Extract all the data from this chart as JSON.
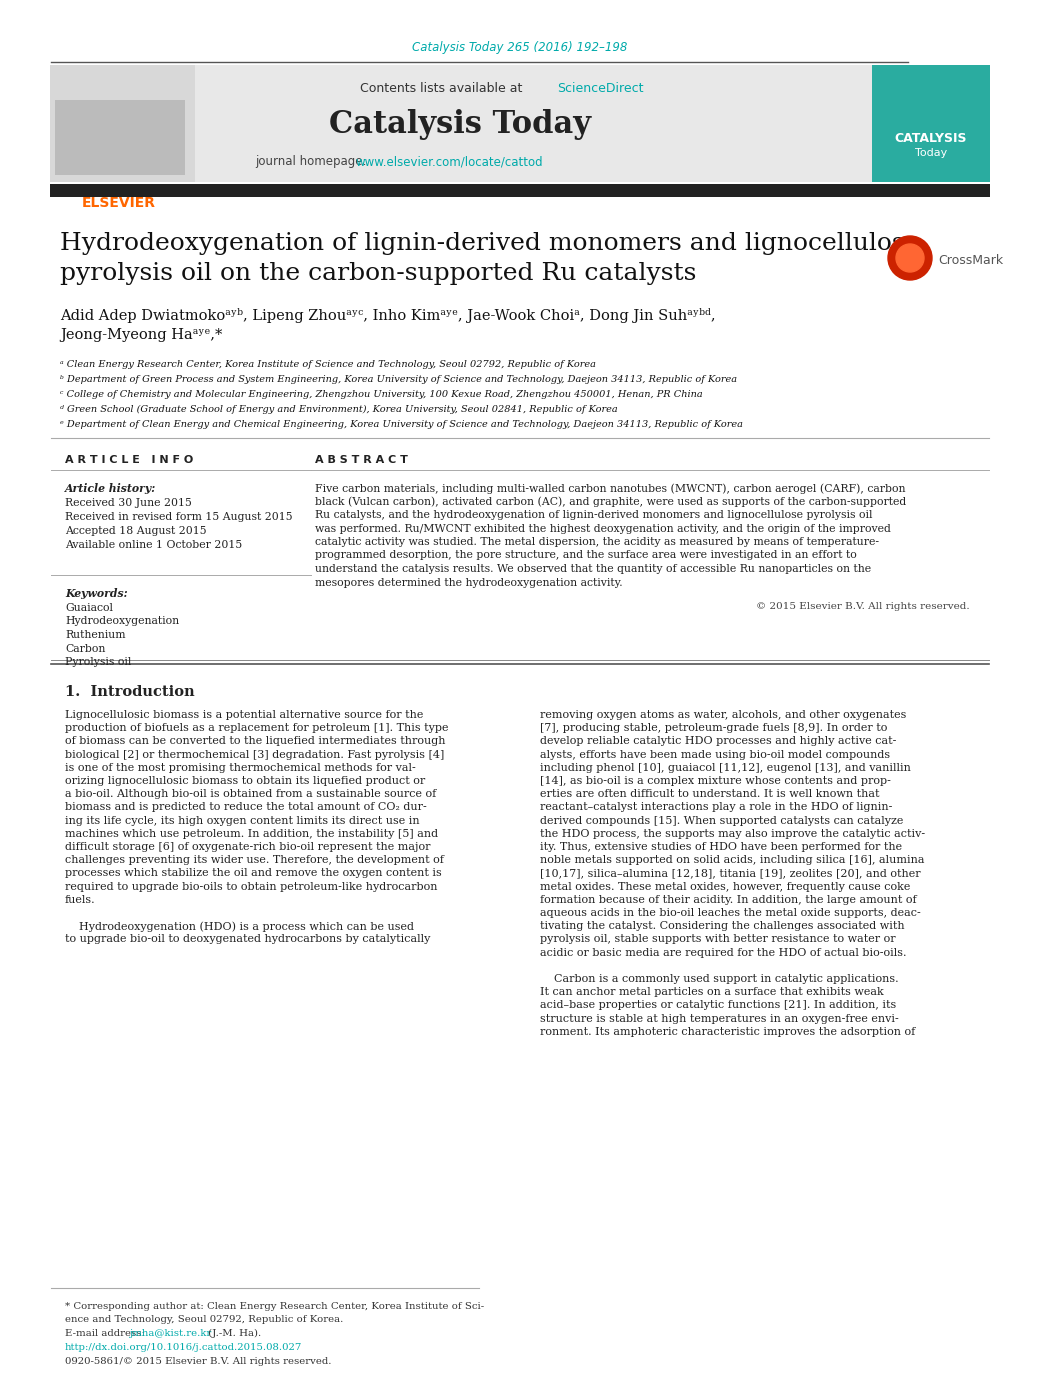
{
  "bg_color": "#ffffff",
  "top_citation": "Catalysis Today 265 (2016) 192–198",
  "top_citation_color": "#00AAAA",
  "header_bg": "#e8e8e8",
  "header_text": "Contents lists available at",
  "sciencedirect_text": "ScienceDirect",
  "sciencedirect_color": "#00AAAA",
  "journal_name": "Catalysis Today",
  "journal_homepage_label": "journal homepage:",
  "journal_url": "www.elsevier.com/locate/cattod",
  "journal_url_color": "#00AAAA",
  "divider_color": "#333333",
  "article_title_line1": "Hydrodeoxygenation of lignin-derived monomers and lignocellulose",
  "article_title_line2": "pyrolysis oil on the carbon-supported Ru catalysts",
  "title_font_size": 18,
  "authors": "Adid Adep Dwiatmokoᵃʸᵇ, Lipeng Zhouᵃʸᶜ, Inho Kimᵃʸᵉ, Jae-Wook Choiᵃ, Dong Jin Suhᵃʸᵇᵈ,",
  "authors_line2": "Jeong-Myeong Haᵃʸᵉ,*",
  "affiliations": [
    "ᵃ Clean Energy Research Center, Korea Institute of Science and Technology, Seoul 02792, Republic of Korea",
    "ᵇ Department of Green Process and System Engineering, Korea University of Science and Technology, Daejeon 34113, Republic of Korea",
    "ᶜ College of Chemistry and Molecular Engineering, Zhengzhou University, 100 Kexue Road, Zhengzhou 450001, Henan, PR China",
    "ᵈ Green School (Graduate School of Energy and Environment), Korea University, Seoul 02841, Republic of Korea",
    "ᵉ Department of Clean Energy and Chemical Engineering, Korea University of Science and Technology, Daejeon 34113, Republic of Korea"
  ],
  "article_info_title": "A R T I C L E   I N F O",
  "article_history_label": "Article history:",
  "received": "Received 30 June 2015",
  "received_revised": "Received in revised form 15 August 2015",
  "accepted": "Accepted 18 August 2015",
  "available": "Available online 1 October 2015",
  "keywords_label": "Keywords:",
  "keywords": [
    "Guaiacol",
    "Hydrodeoxygenation",
    "Ruthenium",
    "Carbon",
    "Pyrolysis oil"
  ],
  "abstract_title": "A B S T R A C T",
  "abstract_text": "Five carbon materials, including multi-walled carbon nanotubes (MWCNT), carbon aerogel (CARF), carbon\nblack (Vulcan carbon), activated carbon (AC), and graphite, were used as supports of the carbon-supported\nRu catalysts, and the hydrodeoxygenation of lignin-derived monomers and lignocellulose pyrolysis oil\nwas performed. Ru/MWCNT exhibited the highest deoxygenation activity, and the origin of the improved\ncatalytic activity was studied. The metal dispersion, the acidity as measured by means of temperature-\nprogrammed desorption, the pore structure, and the surface area were investigated in an effort to\nunderstand the catalysis results. We observed that the quantity of accessible Ru nanoparticles on the\nmesopores determined the hydrodeoxygenation activity.",
  "copyright": "© 2015 Elsevier B.V. All rights reserved.",
  "intro_title": "1.  Introduction",
  "intro_col1": "Lignocellulosic biomass is a potential alternative source for the\nproduction of biofuels as a replacement for petroleum [1]. This type\nof biomass can be converted to the liquefied intermediates through\nbiological [2] or thermochemical [3] degradation. Fast pyrolysis [4]\nis one of the most promising thermochemical methods for val-\norizing lignocellulosic biomass to obtain its liquefied product or\na bio-oil. Although bio-oil is obtained from a sustainable source of\nbiomass and is predicted to reduce the total amount of CO₂ dur-\ning its life cycle, its high oxygen content limits its direct use in\nmachines which use petroleum. In addition, the instability [5] and\ndifficult storage [6] of oxygenate-rich bio-oil represent the major\nchallenges preventing its wider use. Therefore, the development of\nprocesses which stabilize the oil and remove the oxygen content is\nrequired to upgrade bio-oils to obtain petroleum-like hydrocarbon\nfuels.\n\n    Hydrodeoxygenation (HDO) is a process which can be used\nto upgrade bio-oil to deoxygenated hydrocarbons by catalytically",
  "intro_col2": "removing oxygen atoms as water, alcohols, and other oxygenates\n[7], producing stable, petroleum-grade fuels [8,9]. In order to\ndevelop reliable catalytic HDO processes and highly active cat-\nalysts, efforts have been made using bio-oil model compounds\nincluding phenol [10], guaiacol [11,12], eugenol [13], and vanillin\n[14], as bio-oil is a complex mixture whose contents and prop-\nerties are often difficult to understand. It is well known that\nreactant–catalyst interactions play a role in the HDO of lignin-\nderived compounds [15]. When supported catalysts can catalyze\nthe HDO process, the supports may also improve the catalytic activ-\nity. Thus, extensive studies of HDO have been performed for the\nnoble metals supported on solid acids, including silica [16], alumina\n[10,17], silica–alumina [12,18], titania [19], zeolites [20], and other\nmetal oxides. These metal oxides, however, frequently cause coke\nformation because of their acidity. In addition, the large amount of\naqueous acids in the bio-oil leaches the metal oxide supports, deac-\ntivating the catalyst. Considering the challenges associated with\npyrolysis oil, stable supports with better resistance to water or\nacidic or basic media are required for the HDO of actual bio-oils.\n\n    Carbon is a commonly used support in catalytic applications.\nIt can anchor metal particles on a surface that exhibits weak\nacid–base properties or catalytic functions [21]. In addition, its\nstructure is stable at high temperatures in an oxygen-free envi-\nronment. Its amphoteric characteristic improves the adsorption of",
  "footnote_line1": "* Corresponding author at: Clean Energy Research Center, Korea Institute of Sci-",
  "footnote_line2": "ence and Technology, Seoul 02792, Republic of Korea.",
  "footnote_email_label": "E-mail address:",
  "footnote_email": "jmha@kist.re.kr",
  "footnote_email2": " (J.-M. Ha).",
  "footnote_doi": "http://dx.doi.org/10.1016/j.cattod.2015.08.027",
  "footnote_issn": "0920-5861/© 2015 Elsevier B.V. All rights reserved.",
  "link_color": "#00AAAA"
}
